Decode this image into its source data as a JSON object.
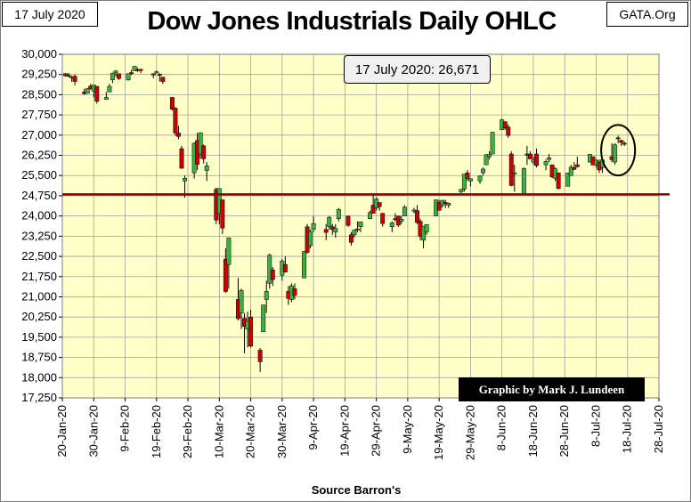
{
  "header": {
    "date_label": "17 July 2020",
    "source_label": "GATA.Org"
  },
  "chart_data": {
    "type": "candlestick",
    "title": "Dow Jones Industrials Daily OHLC",
    "annotation": "17 July 2020: 26,671",
    "credit": "Graphic by Mark J. Lundeen",
    "xlabel": "Source Barron's",
    "ylabel": "",
    "ylim": [
      17250,
      30000
    ],
    "yticks": [
      17250,
      18000,
      18750,
      19500,
      20250,
      21000,
      21750,
      22500,
      23250,
      24000,
      24750,
      25500,
      26250,
      27000,
      27750,
      28500,
      29250,
      30000
    ],
    "ytick_labels": [
      "17,250",
      "18,000",
      "18,750",
      "19,500",
      "20,250",
      "21,000",
      "21,750",
      "22,500",
      "23,250",
      "24,000",
      "24,750",
      "25,500",
      "26,250",
      "27,000",
      "27,750",
      "28,500",
      "29,250",
      "30,000"
    ],
    "x_range_days": [
      "2020-01-20",
      "2020-07-28"
    ],
    "xtick_labels": [
      "20-Jan-20",
      "30-Jan-20",
      "9-Feb-20",
      "19-Feb-20",
      "29-Feb-20",
      "10-Mar-20",
      "20-Mar-20",
      "30-Mar-20",
      "9-Apr-20",
      "19-Apr-20",
      "29-Apr-20",
      "9-May-20",
      "19-May-20",
      "29-May-20",
      "8-Jun-20",
      "18-Jun-20",
      "28-Jun-20",
      "8-Jul-20",
      "18-Jul-20",
      "28-Jul-20"
    ],
    "reference_line": {
      "value": 24800,
      "color": "#8b0000"
    },
    "highlight_circle": {
      "from": "2020-07-13",
      "to": "2020-07-17"
    },
    "colors": {
      "plot_bg": "#ffffc8",
      "grid": "#a0a0a0",
      "up": "#3cb043",
      "down": "#cc0000",
      "wick": "#000000"
    },
    "candles": [
      {
        "date": "2020-01-21",
        "o": 29280,
        "h": 29300,
        "l": 29170,
        "c": 29200
      },
      {
        "date": "2020-01-22",
        "o": 29220,
        "h": 29310,
        "l": 29150,
        "c": 29180
      },
      {
        "date": "2020-01-23",
        "o": 29150,
        "h": 29200,
        "l": 28980,
        "c": 29160
      },
      {
        "date": "2020-01-24",
        "o": 29180,
        "h": 29250,
        "l": 28850,
        "c": 28990
      },
      {
        "date": "2020-01-27",
        "o": 28600,
        "h": 28720,
        "l": 28500,
        "c": 28535
      },
      {
        "date": "2020-01-28",
        "o": 28550,
        "h": 28750,
        "l": 28550,
        "c": 28720
      },
      {
        "date": "2020-01-29",
        "o": 28820,
        "h": 28900,
        "l": 28690,
        "c": 28730
      },
      {
        "date": "2020-01-30",
        "o": 28640,
        "h": 28870,
        "l": 28400,
        "c": 28860
      },
      {
        "date": "2020-01-31",
        "o": 28810,
        "h": 28810,
        "l": 28170,
        "c": 28260
      },
      {
        "date": "2020-02-03",
        "o": 28320,
        "h": 28600,
        "l": 28320,
        "c": 28400
      },
      {
        "date": "2020-02-04",
        "o": 28600,
        "h": 28900,
        "l": 28600,
        "c": 28810
      },
      {
        "date": "2020-02-05",
        "o": 29050,
        "h": 29320,
        "l": 28930,
        "c": 29290
      },
      {
        "date": "2020-02-06",
        "o": 29320,
        "h": 29410,
        "l": 29170,
        "c": 29380
      },
      {
        "date": "2020-02-07",
        "o": 29280,
        "h": 29290,
        "l": 29050,
        "c": 29100
      },
      {
        "date": "2020-02-10",
        "o": 29050,
        "h": 29280,
        "l": 29020,
        "c": 29280
      },
      {
        "date": "2020-02-11",
        "o": 29320,
        "h": 29420,
        "l": 29230,
        "c": 29280
      },
      {
        "date": "2020-02-12",
        "o": 29390,
        "h": 29570,
        "l": 29390,
        "c": 29550
      },
      {
        "date": "2020-02-13",
        "o": 29430,
        "h": 29510,
        "l": 29350,
        "c": 29420
      },
      {
        "date": "2020-02-14",
        "o": 29440,
        "h": 29460,
        "l": 29300,
        "c": 29400
      },
      {
        "date": "2020-02-18",
        "o": 29280,
        "h": 29290,
        "l": 29110,
        "c": 29230
      },
      {
        "date": "2020-02-19",
        "o": 29320,
        "h": 29400,
        "l": 29290,
        "c": 29350
      },
      {
        "date": "2020-02-20",
        "o": 29260,
        "h": 29300,
        "l": 28990,
        "c": 29220
      },
      {
        "date": "2020-02-21",
        "o": 29150,
        "h": 29160,
        "l": 28900,
        "c": 28990
      },
      {
        "date": "2020-02-24",
        "o": 28400,
        "h": 28400,
        "l": 27920,
        "c": 27960
      },
      {
        "date": "2020-02-25",
        "o": 28000,
        "h": 28040,
        "l": 26970,
        "c": 27080
      },
      {
        "date": "2020-02-26",
        "o": 27080,
        "h": 27350,
        "l": 26850,
        "c": 26950
      },
      {
        "date": "2020-02-27",
        "o": 26500,
        "h": 26600,
        "l": 25760,
        "c": 25770
      },
      {
        "date": "2020-02-28",
        "o": 25300,
        "h": 25500,
        "l": 24680,
        "c": 25400
      },
      {
        "date": "2020-03-02",
        "o": 25600,
        "h": 26730,
        "l": 25390,
        "c": 26700
      },
      {
        "date": "2020-03-03",
        "o": 26800,
        "h": 27080,
        "l": 25700,
        "c": 25920
      },
      {
        "date": "2020-03-04",
        "o": 26300,
        "h": 27100,
        "l": 26120,
        "c": 27090
      },
      {
        "date": "2020-03-05",
        "o": 26600,
        "h": 26650,
        "l": 25950,
        "c": 26120
      },
      {
        "date": "2020-03-06",
        "o": 25690,
        "h": 26000,
        "l": 25300,
        "c": 25860
      },
      {
        "date": "2020-03-09",
        "o": 24990,
        "h": 25050,
        "l": 23700,
        "c": 23850
      },
      {
        "date": "2020-03-10",
        "o": 24100,
        "h": 25020,
        "l": 23690,
        "c": 25020
      },
      {
        "date": "2020-03-11",
        "o": 24600,
        "h": 24600,
        "l": 23330,
        "c": 23550
      },
      {
        "date": "2020-03-12",
        "o": 22400,
        "h": 22800,
        "l": 21150,
        "c": 21200
      },
      {
        "date": "2020-03-13",
        "o": 22200,
        "h": 23200,
        "l": 21300,
        "c": 23190
      },
      {
        "date": "2020-03-16",
        "o": 20900,
        "h": 21700,
        "l": 20120,
        "c": 20190
      },
      {
        "date": "2020-03-17",
        "o": 20400,
        "h": 21300,
        "l": 19800,
        "c": 21240
      },
      {
        "date": "2020-03-18",
        "o": 20200,
        "h": 20400,
        "l": 18900,
        "c": 19900
      },
      {
        "date": "2020-03-19",
        "o": 19800,
        "h": 20450,
        "l": 19120,
        "c": 20090
      },
      {
        "date": "2020-03-20",
        "o": 20250,
        "h": 20520,
        "l": 19120,
        "c": 19170
      },
      {
        "date": "2020-03-23",
        "o": 19020,
        "h": 19100,
        "l": 18210,
        "c": 18590
      },
      {
        "date": "2020-03-24",
        "o": 19700,
        "h": 20600,
        "l": 19700,
        "c": 20700
      },
      {
        "date": "2020-03-25",
        "o": 20900,
        "h": 21600,
        "l": 20400,
        "c": 21200
      },
      {
        "date": "2020-03-26",
        "o": 21500,
        "h": 22600,
        "l": 21300,
        "c": 22550
      },
      {
        "date": "2020-03-27",
        "o": 22000,
        "h": 22100,
        "l": 21400,
        "c": 21640
      },
      {
        "date": "2020-03-30",
        "o": 21800,
        "h": 22400,
        "l": 21600,
        "c": 22330
      },
      {
        "date": "2020-03-31",
        "o": 22200,
        "h": 22500,
        "l": 21900,
        "c": 21920
      },
      {
        "date": "2020-04-01",
        "o": 21200,
        "h": 21400,
        "l": 20700,
        "c": 20940
      },
      {
        "date": "2020-04-02",
        "o": 20900,
        "h": 21500,
        "l": 20800,
        "c": 21410
      },
      {
        "date": "2020-04-03",
        "o": 21300,
        "h": 21500,
        "l": 20900,
        "c": 21050
      },
      {
        "date": "2020-04-06",
        "o": 21700,
        "h": 22700,
        "l": 21700,
        "c": 22680
      },
      {
        "date": "2020-04-07",
        "o": 23600,
        "h": 23700,
        "l": 22600,
        "c": 22650
      },
      {
        "date": "2020-04-08",
        "o": 22900,
        "h": 23500,
        "l": 22800,
        "c": 23430
      },
      {
        "date": "2020-04-09",
        "o": 23500,
        "h": 24000,
        "l": 23400,
        "c": 23720
      },
      {
        "date": "2020-04-13",
        "o": 23500,
        "h": 23700,
        "l": 23100,
        "c": 23390
      },
      {
        "date": "2020-04-14",
        "o": 23600,
        "h": 24000,
        "l": 23500,
        "c": 23950
      },
      {
        "date": "2020-04-15",
        "o": 23600,
        "h": 23700,
        "l": 23300,
        "c": 23500
      },
      {
        "date": "2020-04-16",
        "o": 23400,
        "h": 23700,
        "l": 23200,
        "c": 23540
      },
      {
        "date": "2020-04-17",
        "o": 23900,
        "h": 24300,
        "l": 23800,
        "c": 24240
      },
      {
        "date": "2020-04-20",
        "o": 24000,
        "h": 24000,
        "l": 23600,
        "c": 23650
      },
      {
        "date": "2020-04-21",
        "o": 23300,
        "h": 23400,
        "l": 22900,
        "c": 23020
      },
      {
        "date": "2020-04-22",
        "o": 23300,
        "h": 23500,
        "l": 23200,
        "c": 23480
      },
      {
        "date": "2020-04-23",
        "o": 23500,
        "h": 23800,
        "l": 23400,
        "c": 23520
      },
      {
        "date": "2020-04-24",
        "o": 23600,
        "h": 23800,
        "l": 23400,
        "c": 23780
      },
      {
        "date": "2020-04-27",
        "o": 23900,
        "h": 24200,
        "l": 23900,
        "c": 24130
      },
      {
        "date": "2020-04-28",
        "o": 24400,
        "h": 24800,
        "l": 24100,
        "c": 24100
      },
      {
        "date": "2020-04-29",
        "o": 24300,
        "h": 24700,
        "l": 24200,
        "c": 24630
      },
      {
        "date": "2020-04-30",
        "o": 24500,
        "h": 24500,
        "l": 24200,
        "c": 24350
      },
      {
        "date": "2020-05-01",
        "o": 24100,
        "h": 24100,
        "l": 23600,
        "c": 23720
      },
      {
        "date": "2020-05-04",
        "o": 23600,
        "h": 23800,
        "l": 23400,
        "c": 23750
      },
      {
        "date": "2020-05-05",
        "o": 23900,
        "h": 24100,
        "l": 23800,
        "c": 23880
      },
      {
        "date": "2020-05-06",
        "o": 24000,
        "h": 24000,
        "l": 23600,
        "c": 23660
      },
      {
        "date": "2020-05-07",
        "o": 23800,
        "h": 24000,
        "l": 23700,
        "c": 23880
      },
      {
        "date": "2020-05-08",
        "o": 24000,
        "h": 24400,
        "l": 24000,
        "c": 24330
      },
      {
        "date": "2020-05-11",
        "o": 24200,
        "h": 24300,
        "l": 24100,
        "c": 24220
      },
      {
        "date": "2020-05-12",
        "o": 24200,
        "h": 24400,
        "l": 23700,
        "c": 23760
      },
      {
        "date": "2020-05-13",
        "o": 23800,
        "h": 23900,
        "l": 23100,
        "c": 23250
      },
      {
        "date": "2020-05-14",
        "o": 23100,
        "h": 23600,
        "l": 22800,
        "c": 23620
      },
      {
        "date": "2020-05-15",
        "o": 23400,
        "h": 23700,
        "l": 23300,
        "c": 23680
      },
      {
        "date": "2020-05-18",
        "o": 24000,
        "h": 24600,
        "l": 24000,
        "c": 24600
      },
      {
        "date": "2020-05-19",
        "o": 24500,
        "h": 24600,
        "l": 24200,
        "c": 24210
      },
      {
        "date": "2020-05-20",
        "o": 24400,
        "h": 24600,
        "l": 24300,
        "c": 24580
      },
      {
        "date": "2020-05-21",
        "o": 24500,
        "h": 24600,
        "l": 24300,
        "c": 24470
      },
      {
        "date": "2020-05-22",
        "o": 24400,
        "h": 24500,
        "l": 24300,
        "c": 24470
      },
      {
        "date": "2020-05-26",
        "o": 24900,
        "h": 25000,
        "l": 24800,
        "c": 24990
      },
      {
        "date": "2020-05-27",
        "o": 25000,
        "h": 25550,
        "l": 24900,
        "c": 25550
      },
      {
        "date": "2020-05-28",
        "o": 25600,
        "h": 25700,
        "l": 25300,
        "c": 25400
      },
      {
        "date": "2020-05-29",
        "o": 25300,
        "h": 25400,
        "l": 25100,
        "c": 25380
      },
      {
        "date": "2020-06-01",
        "o": 25300,
        "h": 25500,
        "l": 25200,
        "c": 25480
      },
      {
        "date": "2020-06-02",
        "o": 25600,
        "h": 25800,
        "l": 25500,
        "c": 25740
      },
      {
        "date": "2020-06-03",
        "o": 25900,
        "h": 26300,
        "l": 25900,
        "c": 26270
      },
      {
        "date": "2020-06-04",
        "o": 26200,
        "h": 26400,
        "l": 26100,
        "c": 26280
      },
      {
        "date": "2020-06-05",
        "o": 26300,
        "h": 27100,
        "l": 26300,
        "c": 27110
      },
      {
        "date": "2020-06-08",
        "o": 27200,
        "h": 27600,
        "l": 27200,
        "c": 27570
      },
      {
        "date": "2020-06-09",
        "o": 27500,
        "h": 27500,
        "l": 27200,
        "c": 27270
      },
      {
        "date": "2020-06-10",
        "o": 27300,
        "h": 27400,
        "l": 26900,
        "c": 26990
      },
      {
        "date": "2020-06-11",
        "o": 26300,
        "h": 26400,
        "l": 25100,
        "c": 25130
      },
      {
        "date": "2020-06-12",
        "o": 25600,
        "h": 25900,
        "l": 24900,
        "c": 25600
      },
      {
        "date": "2020-06-15",
        "o": 24800,
        "h": 25800,
        "l": 24800,
        "c": 25760
      },
      {
        "date": "2020-06-16",
        "o": 26300,
        "h": 26600,
        "l": 25900,
        "c": 26290
      },
      {
        "date": "2020-06-17",
        "o": 26300,
        "h": 26400,
        "l": 26100,
        "c": 26120
      },
      {
        "date": "2020-06-18",
        "o": 26000,
        "h": 26200,
        "l": 25900,
        "c": 26080
      },
      {
        "date": "2020-06-19",
        "o": 26300,
        "h": 26500,
        "l": 25800,
        "c": 25870
      },
      {
        "date": "2020-06-22",
        "o": 25900,
        "h": 26100,
        "l": 25700,
        "c": 26020
      },
      {
        "date": "2020-06-23",
        "o": 26100,
        "h": 26300,
        "l": 26000,
        "c": 26160
      },
      {
        "date": "2020-06-24",
        "o": 25900,
        "h": 25900,
        "l": 25400,
        "c": 25450
      },
      {
        "date": "2020-06-25",
        "o": 25400,
        "h": 25800,
        "l": 25300,
        "c": 25750
      },
      {
        "date": "2020-06-26",
        "o": 25600,
        "h": 25600,
        "l": 24990,
        "c": 25020
      },
      {
        "date": "2020-06-29",
        "o": 25100,
        "h": 25600,
        "l": 25100,
        "c": 25600
      },
      {
        "date": "2020-06-30",
        "o": 25500,
        "h": 25900,
        "l": 25500,
        "c": 25810
      },
      {
        "date": "2020-07-01",
        "o": 25800,
        "h": 26000,
        "l": 25700,
        "c": 25730
      },
      {
        "date": "2020-07-02",
        "o": 25900,
        "h": 26200,
        "l": 25800,
        "c": 25830
      },
      {
        "date": "2020-07-06",
        "o": 26000,
        "h": 26300,
        "l": 26000,
        "c": 26290
      },
      {
        "date": "2020-07-07",
        "o": 26200,
        "h": 26200,
        "l": 25900,
        "c": 25890
      },
      {
        "date": "2020-07-08",
        "o": 25900,
        "h": 26100,
        "l": 25800,
        "c": 26070
      },
      {
        "date": "2020-07-09",
        "o": 26000,
        "h": 26100,
        "l": 25600,
        "c": 25710
      },
      {
        "date": "2020-07-10",
        "o": 25800,
        "h": 26100,
        "l": 25600,
        "c": 26080
      },
      {
        "date": "2020-07-13",
        "o": 26200,
        "h": 26700,
        "l": 26000,
        "c": 26090
      },
      {
        "date": "2020-07-14",
        "o": 26000,
        "h": 26700,
        "l": 25900,
        "c": 26640
      },
      {
        "date": "2020-07-15",
        "o": 26900,
        "h": 26980,
        "l": 26700,
        "c": 26870
      },
      {
        "date": "2020-07-16",
        "o": 26800,
        "h": 26830,
        "l": 26600,
        "c": 26730
      },
      {
        "date": "2020-07-17",
        "o": 26700,
        "h": 26760,
        "l": 26600,
        "c": 26671
      }
    ]
  }
}
